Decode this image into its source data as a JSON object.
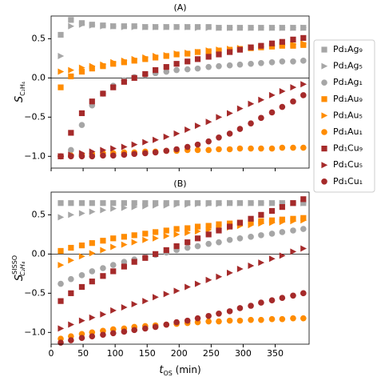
{
  "chart_data": [
    {
      "type": "scatter",
      "title": "(A)",
      "ylabel": {
        "base": "S",
        "sub": "C₂H₄"
      },
      "x": [
        15,
        31,
        48,
        64,
        81,
        97,
        114,
        130,
        147,
        163,
        180,
        196,
        213,
        229,
        246,
        262,
        279,
        295,
        312,
        328,
        345,
        361,
        378,
        394
      ],
      "xlim": [
        0,
        403
      ],
      "xticks": [
        0,
        50,
        100,
        150,
        200,
        250,
        300,
        350
      ],
      "ylim": [
        -1.15,
        0.79
      ],
      "yticks": [
        {
          "value": -1.0,
          "label": "−1.0"
        },
        {
          "value": -0.5,
          "label": "−0.5"
        },
        {
          "value": 0.0,
          "label": "0.0"
        },
        {
          "value": 0.5,
          "label": "0.5"
        }
      ],
      "hline": 0,
      "series": [
        {
          "name": "Pd₁Ag₉",
          "color": "#a6a6a6",
          "marker": "square",
          "values": [
            0.55,
            0.74,
            0.7,
            0.68,
            0.67,
            0.66,
            0.66,
            0.66,
            0.65,
            0.65,
            0.65,
            0.65,
            0.65,
            0.65,
            0.65,
            0.64,
            0.64,
            0.64,
            0.64,
            0.64,
            0.64,
            0.64,
            0.64,
            0.64
          ]
        },
        {
          "name": "Pd₁Ag₅",
          "color": "#a6a6a6",
          "marker": "triangle",
          "values": [
            0.28,
            0.66,
            0.68,
            0.67,
            0.66,
            0.66,
            0.65,
            0.65,
            0.65,
            0.65,
            0.65,
            0.65,
            0.65,
            0.64,
            0.64,
            0.64,
            0.64,
            0.64,
            0.64,
            0.64,
            0.64,
            0.64,
            0.64,
            0.64
          ]
        },
        {
          "name": "Pd₁Ag₁",
          "color": "#a6a6a6",
          "marker": "circle",
          "values": [
            -1.0,
            -0.92,
            -0.6,
            -0.35,
            -0.2,
            -0.1,
            -0.03,
            0.01,
            0.04,
            0.06,
            0.08,
            0.1,
            0.11,
            0.12,
            0.14,
            0.15,
            0.16,
            0.17,
            0.18,
            0.19,
            0.2,
            0.21,
            0.21,
            0.22
          ]
        },
        {
          "name": "Pd₁Au₉",
          "color": "#ff8c00",
          "marker": "square",
          "values": [
            -0.12,
            0.02,
            0.08,
            0.12,
            0.15,
            0.18,
            0.2,
            0.22,
            0.24,
            0.26,
            0.28,
            0.3,
            0.31,
            0.33,
            0.34,
            0.35,
            0.36,
            0.37,
            0.38,
            0.39,
            0.4,
            0.41,
            0.41,
            0.42
          ]
        },
        {
          "name": "Pd₁Au₅",
          "color": "#ff8c00",
          "marker": "triangle",
          "values": [
            0.08,
            0.1,
            0.13,
            0.15,
            0.17,
            0.2,
            0.22,
            0.24,
            0.26,
            0.28,
            0.29,
            0.31,
            0.32,
            0.33,
            0.35,
            0.36,
            0.37,
            0.38,
            0.39,
            0.4,
            0.41,
            0.42,
            0.43,
            0.44
          ]
        },
        {
          "name": "Pd₁Au₁",
          "color": "#ff8c00",
          "marker": "circle",
          "values": [
            -1.0,
            -0.99,
            -0.98,
            -0.97,
            -0.96,
            -0.96,
            -0.95,
            -0.95,
            -0.94,
            -0.94,
            -0.93,
            -0.93,
            -0.92,
            -0.92,
            -0.92,
            -0.91,
            -0.91,
            -0.9,
            -0.9,
            -0.9,
            -0.9,
            -0.89,
            -0.89,
            -0.89
          ]
        },
        {
          "name": "Pd₁Cu₉",
          "color": "#a52a2a",
          "marker": "square",
          "values": [
            -1.0,
            -0.7,
            -0.45,
            -0.3,
            -0.2,
            -0.12,
            -0.05,
            0.0,
            0.05,
            0.1,
            0.14,
            0.18,
            0.21,
            0.24,
            0.27,
            0.3,
            0.33,
            0.36,
            0.39,
            0.41,
            0.44,
            0.46,
            0.49,
            0.51
          ]
        },
        {
          "name": "Pd₁Cu₅",
          "color": "#a52a2a",
          "marker": "triangle",
          "values": [
            -1.0,
            -0.98,
            -0.96,
            -0.94,
            -0.92,
            -0.9,
            -0.88,
            -0.85,
            -0.82,
            -0.79,
            -0.75,
            -0.71,
            -0.66,
            -0.61,
            -0.56,
            -0.5,
            -0.45,
            -0.39,
            -0.33,
            -0.28,
            -0.22,
            -0.17,
            -0.12,
            -0.08
          ]
        },
        {
          "name": "Pd₁Cu₁",
          "color": "#a52a2a",
          "marker": "circle",
          "values": [
            -1.0,
            -1.0,
            -1.0,
            -1.0,
            -0.99,
            -0.99,
            -0.98,
            -0.97,
            -0.96,
            -0.95,
            -0.93,
            -0.91,
            -0.88,
            -0.85,
            -0.81,
            -0.76,
            -0.71,
            -0.65,
            -0.58,
            -0.51,
            -0.44,
            -0.37,
            -0.3,
            -0.22
          ]
        }
      ]
    },
    {
      "type": "scatter",
      "title": "(B)",
      "ylabel": {
        "base": "S",
        "sup": "SISSO",
        "sub": "C₂H₄"
      },
      "xlabel": {
        "base": "t",
        "sub": "OS",
        "rest": " (min)"
      },
      "x": [
        15,
        31,
        48,
        64,
        81,
        97,
        114,
        130,
        147,
        163,
        180,
        196,
        213,
        229,
        246,
        262,
        279,
        295,
        312,
        328,
        345,
        361,
        378,
        394
      ],
      "xlim": [
        0,
        403
      ],
      "xticks": [
        0,
        50,
        100,
        150,
        200,
        250,
        300,
        350
      ],
      "ylim": [
        -1.15,
        0.79
      ],
      "yticks": [
        {
          "value": -1.0,
          "label": "−1.0"
        },
        {
          "value": -0.5,
          "label": "−0.5"
        },
        {
          "value": 0.0,
          "label": "0.0"
        },
        {
          "value": 0.5,
          "label": "0.5"
        }
      ],
      "hline": 0,
      "series": [
        {
          "color": "#a6a6a6",
          "marker": "square",
          "values": [
            0.65,
            0.65,
            0.65,
            0.65,
            0.65,
            0.65,
            0.65,
            0.65,
            0.65,
            0.65,
            0.65,
            0.65,
            0.65,
            0.65,
            0.65,
            0.65,
            0.65,
            0.65,
            0.65,
            0.65,
            0.65,
            0.65,
            0.65,
            0.65
          ]
        },
        {
          "color": "#a6a6a6",
          "marker": "triangle",
          "values": [
            0.47,
            0.5,
            0.52,
            0.54,
            0.56,
            0.58,
            0.59,
            0.6,
            0.61,
            0.62,
            0.62,
            0.63,
            0.63,
            0.64,
            0.64,
            0.64,
            0.65,
            0.65,
            0.65,
            0.65,
            0.65,
            0.65,
            0.65,
            0.65
          ]
        },
        {
          "color": "#a6a6a6",
          "marker": "circle",
          "values": [
            -0.38,
            -0.32,
            -0.27,
            -0.22,
            -0.18,
            -0.14,
            -0.1,
            -0.07,
            -0.04,
            -0.01,
            0.02,
            0.05,
            0.08,
            0.1,
            0.13,
            0.15,
            0.18,
            0.2,
            0.22,
            0.24,
            0.26,
            0.28,
            0.3,
            0.32
          ]
        },
        {
          "color": "#ff8c00",
          "marker": "square",
          "values": [
            0.04,
            0.08,
            0.11,
            0.14,
            0.17,
            0.2,
            0.22,
            0.24,
            0.26,
            0.28,
            0.3,
            0.32,
            0.33,
            0.35,
            0.36,
            0.38,
            0.39,
            0.4,
            0.41,
            0.42,
            0.43,
            0.44,
            0.45,
            0.46
          ]
        },
        {
          "color": "#ff8c00",
          "marker": "triangle",
          "values": [
            -0.14,
            -0.08,
            -0.03,
            0.01,
            0.05,
            0.09,
            0.12,
            0.15,
            0.18,
            0.2,
            0.23,
            0.25,
            0.27,
            0.29,
            0.31,
            0.33,
            0.34,
            0.36,
            0.37,
            0.39,
            0.4,
            0.41,
            0.42,
            0.43
          ]
        },
        {
          "color": "#ff8c00",
          "marker": "circle",
          "values": [
            -1.08,
            -1.05,
            -1.02,
            -1.0,
            -0.98,
            -0.96,
            -0.95,
            -0.93,
            -0.92,
            -0.91,
            -0.9,
            -0.89,
            -0.88,
            -0.87,
            -0.86,
            -0.86,
            -0.85,
            -0.85,
            -0.84,
            -0.84,
            -0.83,
            -0.83,
            -0.82,
            -0.82
          ]
        },
        {
          "color": "#a52a2a",
          "marker": "square",
          "values": [
            -0.6,
            -0.5,
            -0.42,
            -0.35,
            -0.28,
            -0.22,
            -0.16,
            -0.1,
            -0.05,
            0.0,
            0.05,
            0.1,
            0.15,
            0.2,
            0.25,
            0.3,
            0.35,
            0.4,
            0.45,
            0.5,
            0.55,
            0.6,
            0.65,
            0.7
          ]
        },
        {
          "color": "#a52a2a",
          "marker": "triangle",
          "values": [
            -0.95,
            -0.9,
            -0.85,
            -0.81,
            -0.77,
            -0.72,
            -0.68,
            -0.64,
            -0.6,
            -0.55,
            -0.51,
            -0.47,
            -0.42,
            -0.38,
            -0.33,
            -0.29,
            -0.24,
            -0.19,
            -0.15,
            -0.11,
            -0.06,
            -0.02,
            0.03,
            0.07
          ]
        },
        {
          "color": "#a52a2a",
          "marker": "circle",
          "values": [
            -1.13,
            -1.1,
            -1.07,
            -1.05,
            -1.03,
            -1.01,
            -0.99,
            -0.97,
            -0.95,
            -0.93,
            -0.9,
            -0.87,
            -0.85,
            -0.82,
            -0.79,
            -0.76,
            -0.73,
            -0.69,
            -0.66,
            -0.62,
            -0.59,
            -0.56,
            -0.53,
            -0.5
          ]
        }
      ]
    }
  ]
}
